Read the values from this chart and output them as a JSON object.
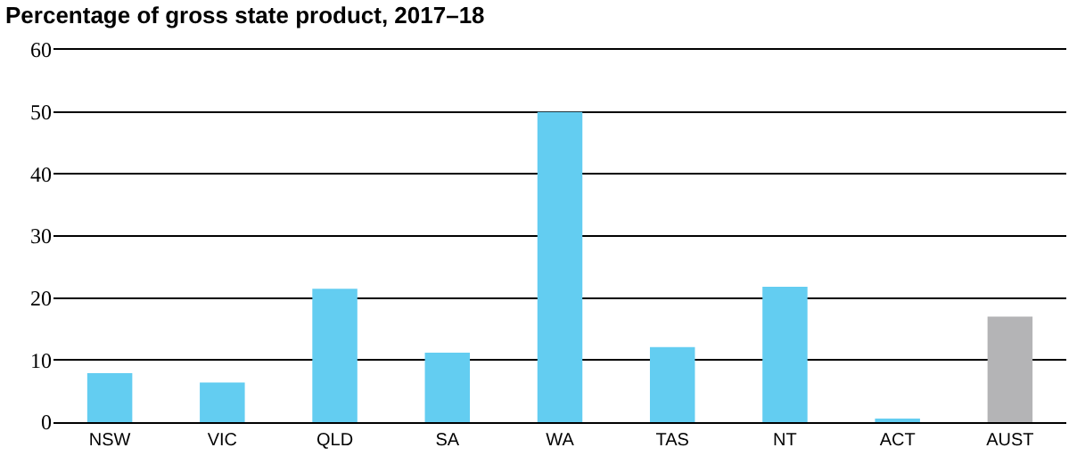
{
  "chart_data": {
    "type": "bar",
    "title": "Percentage of gross state product, 2017–18",
    "categories": [
      "NSW",
      "VIC",
      "QLD",
      "SA",
      "WA",
      "TAS",
      "NT",
      "ACT",
      "AUST"
    ],
    "values": [
      7.9,
      6.4,
      21.5,
      11.2,
      50,
      12.1,
      21.8,
      0.3,
      17.0
    ],
    "colors": [
      "#63cdf1",
      "#63cdf1",
      "#63cdf1",
      "#63cdf1",
      "#63cdf1",
      "#63cdf1",
      "#63cdf1",
      "#63cdf1",
      "#b4b4b6"
    ],
    "ylim": [
      0,
      60
    ],
    "yticks": [
      0,
      10,
      20,
      30,
      40,
      50,
      60
    ],
    "grid": "y"
  }
}
